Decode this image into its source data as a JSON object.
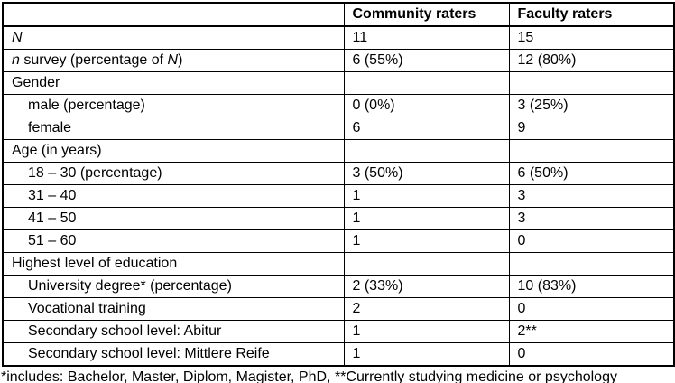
{
  "table": {
    "header": [
      "",
      "Community raters",
      "Faculty raters"
    ],
    "rows": [
      {
        "label": [
          [
            "N",
            true
          ]
        ],
        "indent": false,
        "values": [
          "11",
          "15"
        ]
      },
      {
        "label": [
          [
            "n",
            true
          ],
          [
            " survey (percentage of ",
            false
          ],
          [
            "N",
            true
          ],
          [
            ")",
            false
          ]
        ],
        "indent": false,
        "values": [
          "6 (55%)",
          "12 (80%)"
        ]
      },
      {
        "label": [
          [
            "Gender",
            false
          ]
        ],
        "indent": false,
        "values": [
          "",
          ""
        ]
      },
      {
        "label": [
          [
            "male (percentage)",
            false
          ]
        ],
        "indent": true,
        "values": [
          "0 (0%)",
          "3 (25%)"
        ]
      },
      {
        "label": [
          [
            "female",
            false
          ]
        ],
        "indent": true,
        "values": [
          "6",
          "9"
        ]
      },
      {
        "label": [
          [
            "Age (in years)",
            false
          ]
        ],
        "indent": false,
        "values": [
          "",
          ""
        ]
      },
      {
        "label": [
          [
            "18 – 30 (percentage)",
            false
          ]
        ],
        "indent": true,
        "values": [
          "3 (50%)",
          "6 (50%)"
        ]
      },
      {
        "label": [
          [
            "31 – 40",
            false
          ]
        ],
        "indent": true,
        "values": [
          "1",
          "3"
        ]
      },
      {
        "label": [
          [
            "41 – 50",
            false
          ]
        ],
        "indent": true,
        "values": [
          "1",
          "3"
        ]
      },
      {
        "label": [
          [
            "51 – 60",
            false
          ]
        ],
        "indent": true,
        "values": [
          "1",
          "0"
        ]
      },
      {
        "label": [
          [
            "Highest level of education",
            false
          ]
        ],
        "indent": false,
        "values": [
          "",
          ""
        ]
      },
      {
        "label": [
          [
            "University degree* (percentage)",
            false
          ]
        ],
        "indent": true,
        "values": [
          "2 (33%)",
          "10 (83%)"
        ]
      },
      {
        "label": [
          [
            "Vocational training",
            false
          ]
        ],
        "indent": true,
        "values": [
          "2",
          "0"
        ]
      },
      {
        "label": [
          [
            "Secondary school level: Abitur",
            false
          ]
        ],
        "indent": true,
        "values": [
          "1",
          "2**"
        ]
      },
      {
        "label": [
          [
            "Secondary school level: Mittlere Reife",
            false
          ]
        ],
        "indent": true,
        "values": [
          "1",
          "0"
        ]
      }
    ]
  },
  "footnote": "*includes: Bachelor, Master, Diplom, Magister, PhD, **Currently studying medicine or psychology"
}
